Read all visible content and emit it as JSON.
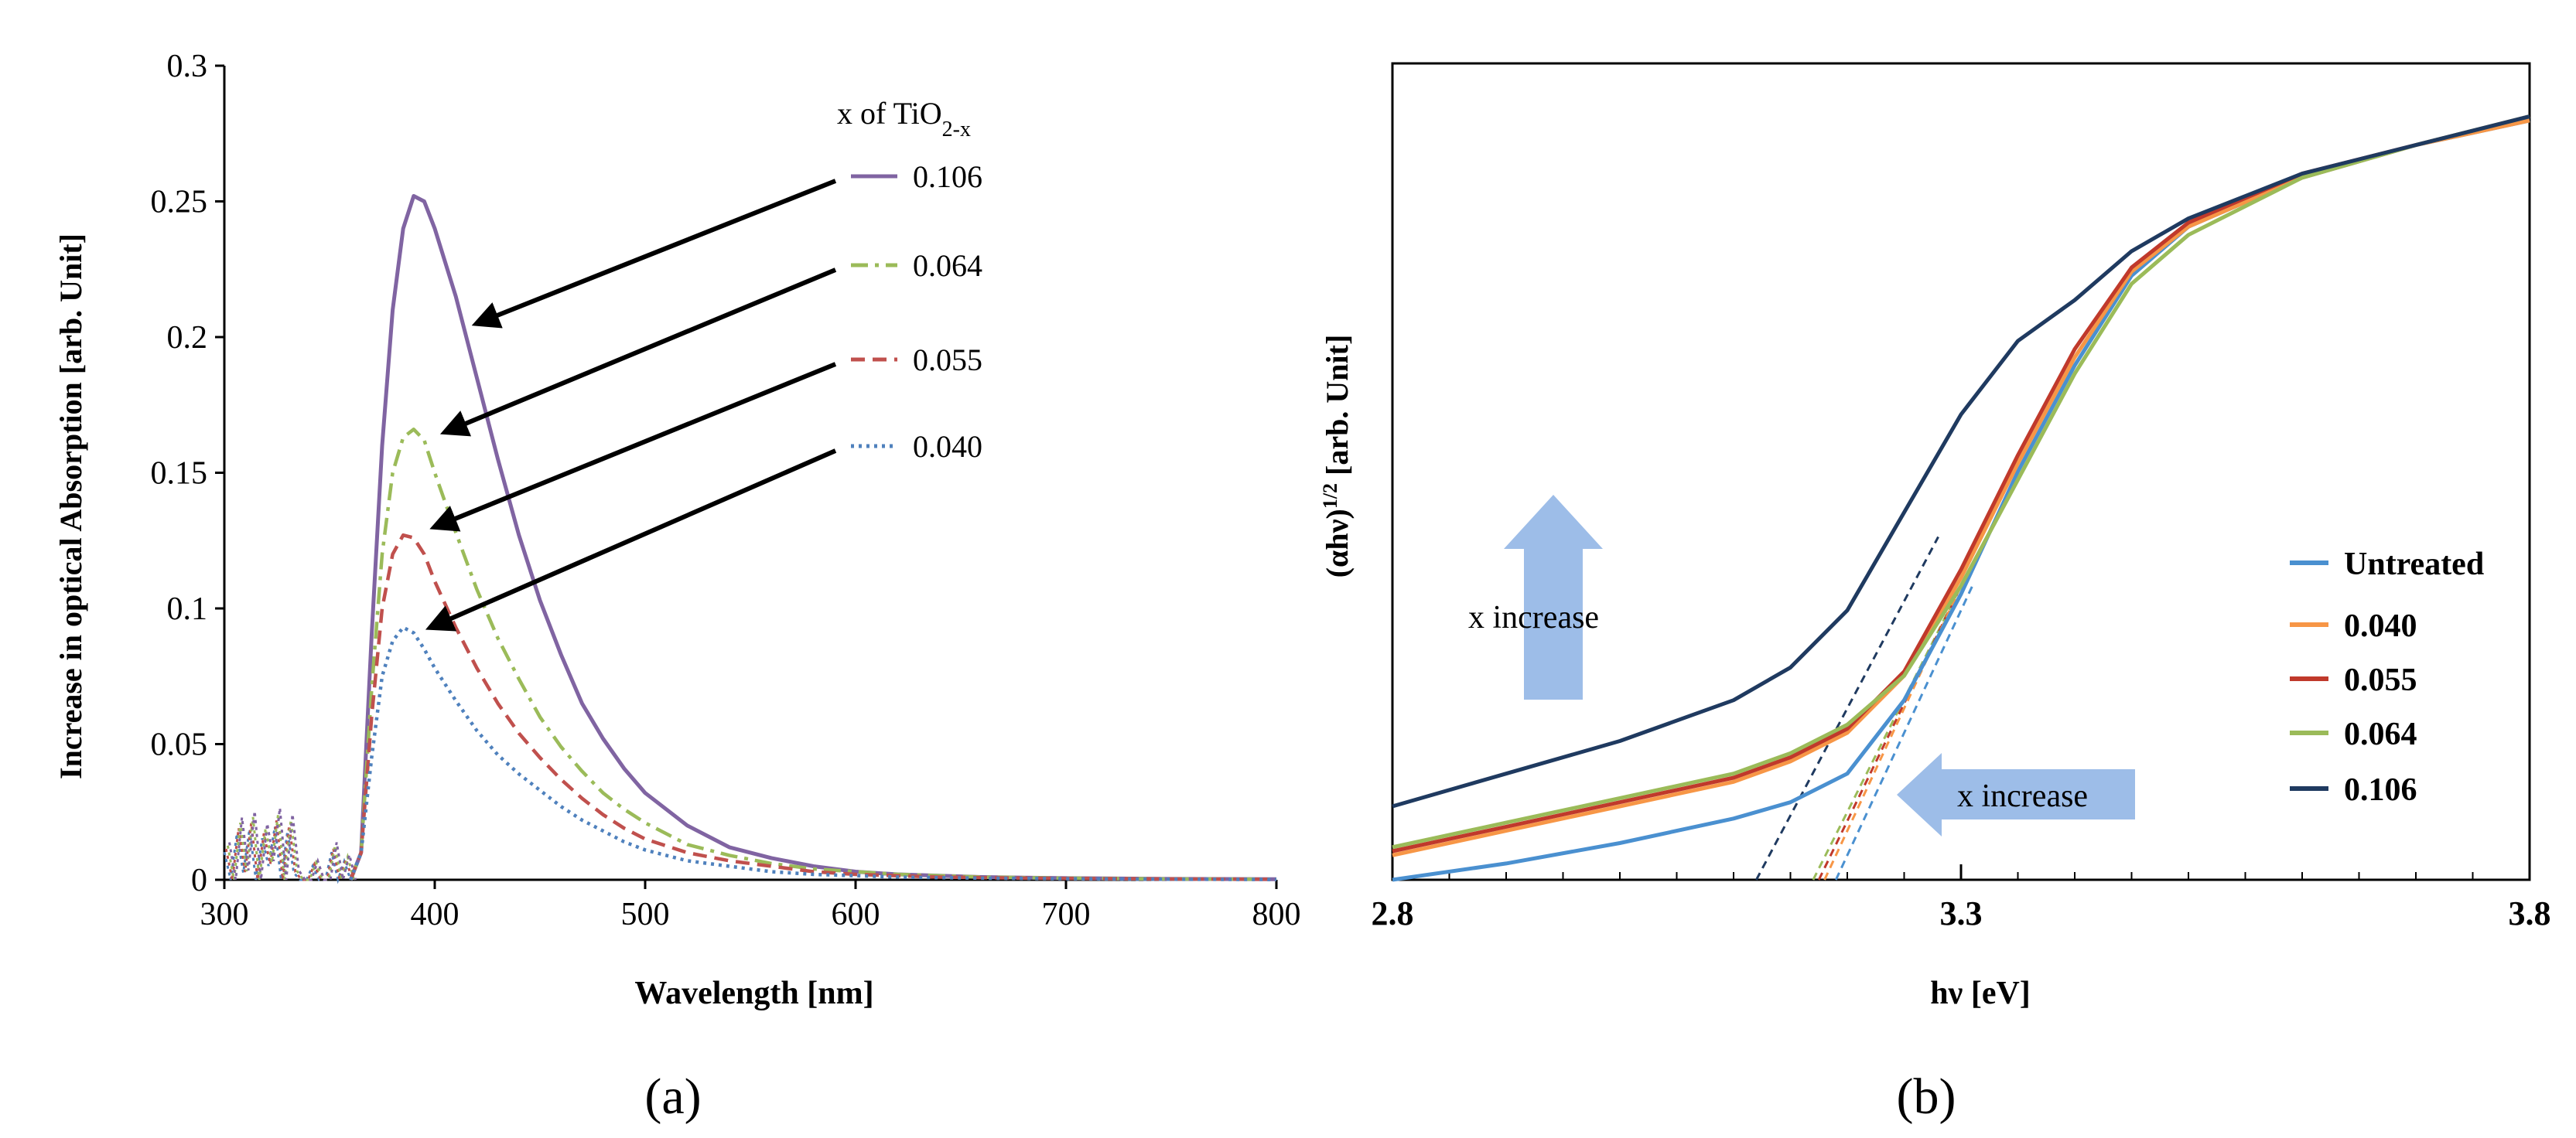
{
  "panel_labels": [
    "(a)",
    "(b)"
  ],
  "chart_data": [
    {
      "type": "line",
      "title": "",
      "xlabel": "Wavelength [nm]",
      "ylabel": "Increase in optical Absorption [arb. Unit]",
      "xlim": [
        300,
        800
      ],
      "ylim": [
        0,
        0.3
      ],
      "xticks": [
        "300",
        "400",
        "500",
        "600",
        "700",
        "800"
      ],
      "yticks": [
        "0",
        "0.05",
        "0.1",
        "0.15",
        "0.2",
        "0.25",
        "0.3"
      ],
      "legend": {
        "title": "x of TiO",
        "title_sub": "2-x",
        "placement": "top-right"
      },
      "grid": false,
      "series": [
        {
          "name": "0.106",
          "color": "#8064A2",
          "style": "solid",
          "x": [
            360,
            365,
            370,
            375,
            380,
            385,
            390,
            395,
            400,
            410,
            420,
            430,
            440,
            450,
            460,
            470,
            480,
            490,
            500,
            520,
            540,
            560,
            580,
            600,
            620,
            640,
            660,
            680,
            700,
            750,
            800
          ],
          "y": [
            0,
            0.01,
            0.09,
            0.16,
            0.21,
            0.24,
            0.252,
            0.25,
            0.24,
            0.215,
            0.185,
            0.155,
            0.127,
            0.103,
            0.083,
            0.065,
            0.052,
            0.041,
            0.032,
            0.02,
            0.012,
            0.008,
            0.005,
            0.003,
            0.002,
            0.0015,
            0.001,
            0.0008,
            0.0006,
            0.0003,
            0.0002
          ]
        },
        {
          "name": "0.064",
          "color": "#9BBB59",
          "style": "dashdot",
          "x": [
            360,
            365,
            370,
            375,
            380,
            385,
            390,
            395,
            400,
            410,
            420,
            430,
            440,
            450,
            460,
            470,
            480,
            490,
            500,
            520,
            540,
            560,
            580,
            600,
            620,
            640,
            660,
            680,
            700,
            750,
            800
          ],
          "y": [
            0,
            0.01,
            0.07,
            0.12,
            0.15,
            0.163,
            0.166,
            0.162,
            0.15,
            0.128,
            0.107,
            0.089,
            0.074,
            0.06,
            0.049,
            0.04,
            0.032,
            0.026,
            0.021,
            0.013,
            0.009,
            0.006,
            0.004,
            0.003,
            0.002,
            0.0015,
            0.001,
            0.0008,
            0.0006,
            0.0003,
            0.0002
          ]
        },
        {
          "name": "0.055",
          "color": "#C0504D",
          "style": "dashed",
          "x": [
            360,
            365,
            370,
            375,
            380,
            385,
            390,
            395,
            400,
            410,
            420,
            430,
            440,
            450,
            460,
            470,
            480,
            490,
            500,
            520,
            540,
            560,
            580,
            600,
            620,
            640,
            660,
            680,
            700,
            750,
            800
          ],
          "y": [
            0,
            0.01,
            0.06,
            0.1,
            0.12,
            0.127,
            0.126,
            0.12,
            0.11,
            0.093,
            0.078,
            0.065,
            0.054,
            0.045,
            0.037,
            0.03,
            0.024,
            0.019,
            0.015,
            0.01,
            0.007,
            0.005,
            0.003,
            0.002,
            0.0015,
            0.001,
            0.0008,
            0.0006,
            0.0005,
            0.0003,
            0.0002
          ]
        },
        {
          "name": "0.040",
          "color": "#4F81BD",
          "style": "dotted",
          "x": [
            360,
            365,
            370,
            375,
            380,
            385,
            390,
            395,
            400,
            410,
            420,
            430,
            440,
            450,
            460,
            470,
            480,
            490,
            500,
            520,
            540,
            560,
            580,
            600,
            620,
            640,
            660,
            680,
            700,
            750,
            800
          ],
          "y": [
            0,
            0.01,
            0.045,
            0.075,
            0.088,
            0.093,
            0.091,
            0.085,
            0.078,
            0.066,
            0.055,
            0.046,
            0.039,
            0.033,
            0.027,
            0.022,
            0.018,
            0.014,
            0.011,
            0.007,
            0.005,
            0.003,
            0.002,
            0.0015,
            0.001,
            0.0008,
            0.0006,
            0.0005,
            0.0004,
            0.0002,
            0.0001
          ]
        }
      ],
      "noise_region": {
        "x": [
          300,
          303,
          306,
          309,
          312,
          315,
          318,
          321,
          324,
          327,
          330,
          333,
          336,
          339,
          342,
          345,
          348,
          351,
          354,
          357,
          360
        ],
        "y": [
          0.012,
          0.0,
          0.02,
          0.003,
          0.022,
          0.0,
          0.018,
          0.006,
          0.023,
          0.0,
          0.021,
          0.003,
          0.0,
          0.0,
          0.006,
          0.0,
          0.0,
          0.012,
          0.0,
          0.008,
          0.0
        ]
      }
    },
    {
      "type": "line",
      "title": "",
      "xlabel": "hν  [eV]",
      "ylabel_main": "(αhν)",
      "ylabel_sup": "1/2",
      "ylabel_rest": "  [arb. Unit]",
      "xlim": [
        2.8,
        3.8
      ],
      "ylim": [
        0,
        1
      ],
      "xticks": [
        "2.8",
        "3.3",
        "3.8"
      ],
      "grid": false,
      "legend": {
        "placement": "bottom-right"
      },
      "annotations": [
        {
          "text": "x increase",
          "arrow": "up"
        },
        {
          "text": "x increase",
          "arrow": "left"
        }
      ],
      "series": [
        {
          "name": "Untreated",
          "color": "#4A90D0",
          "x": [
            2.8,
            2.9,
            3.0,
            3.1,
            3.15,
            3.2,
            3.25,
            3.3,
            3.35,
            3.4,
            3.45,
            3.5,
            3.6,
            3.7,
            3.8
          ],
          "y": [
            0.0,
            0.02,
            0.045,
            0.075,
            0.095,
            0.13,
            0.22,
            0.35,
            0.5,
            0.63,
            0.74,
            0.8,
            0.86,
            0.9,
            0.93
          ]
        },
        {
          "name": "0.040",
          "color": "#F79646",
          "x": [
            2.8,
            2.9,
            3.0,
            3.1,
            3.15,
            3.2,
            3.25,
            3.3,
            3.35,
            3.4,
            3.45,
            3.5,
            3.6,
            3.7,
            3.8
          ],
          "y": [
            0.03,
            0.06,
            0.09,
            0.12,
            0.145,
            0.18,
            0.25,
            0.37,
            0.51,
            0.64,
            0.745,
            0.8,
            0.86,
            0.9,
            0.93
          ]
        },
        {
          "name": "0.055",
          "color": "#C0392B",
          "x": [
            2.8,
            2.9,
            3.0,
            3.1,
            3.15,
            3.2,
            3.25,
            3.3,
            3.35,
            3.4,
            3.45,
            3.5,
            3.6,
            3.7,
            3.8
          ],
          "y": [
            0.035,
            0.065,
            0.095,
            0.125,
            0.15,
            0.185,
            0.255,
            0.38,
            0.52,
            0.65,
            0.75,
            0.805,
            0.865,
            0.9,
            0.935
          ]
        },
        {
          "name": "0.064",
          "color": "#9BBB59",
          "x": [
            2.8,
            2.9,
            3.0,
            3.1,
            3.15,
            3.2,
            3.25,
            3.3,
            3.35,
            3.4,
            3.45,
            3.5,
            3.6,
            3.7,
            3.8
          ],
          "y": [
            0.04,
            0.07,
            0.1,
            0.13,
            0.155,
            0.19,
            0.25,
            0.36,
            0.49,
            0.62,
            0.73,
            0.79,
            0.86,
            0.9,
            0.935
          ]
        },
        {
          "name": "0.106",
          "color": "#1F3A60",
          "x": [
            2.8,
            2.9,
            3.0,
            3.1,
            3.15,
            3.2,
            3.25,
            3.3,
            3.35,
            3.4,
            3.45,
            3.5,
            3.6,
            3.7,
            3.8
          ],
          "y": [
            0.09,
            0.13,
            0.17,
            0.22,
            0.26,
            0.33,
            0.45,
            0.57,
            0.66,
            0.71,
            0.77,
            0.81,
            0.865,
            0.9,
            0.935
          ]
        }
      ],
      "extrapolation_lines": [
        {
          "series": "0.106",
          "color": "#1F3A60",
          "x": [
            3.12,
            3.28
          ],
          "y": [
            0.0,
            0.42
          ]
        },
        {
          "series": "0.064",
          "color": "#9BBB59",
          "x": [
            3.17,
            3.3
          ],
          "y": [
            0.0,
            0.36
          ]
        },
        {
          "series": "0.055",
          "color": "#C0392B",
          "x": [
            3.175,
            3.3
          ],
          "y": [
            0.0,
            0.36
          ]
        },
        {
          "series": "0.040",
          "color": "#F79646",
          "x": [
            3.18,
            3.3
          ],
          "y": [
            0.0,
            0.36
          ]
        },
        {
          "series": "Untreated",
          "color": "#4A90D0",
          "x": [
            3.19,
            3.31
          ],
          "y": [
            0.0,
            0.36
          ]
        }
      ]
    }
  ]
}
